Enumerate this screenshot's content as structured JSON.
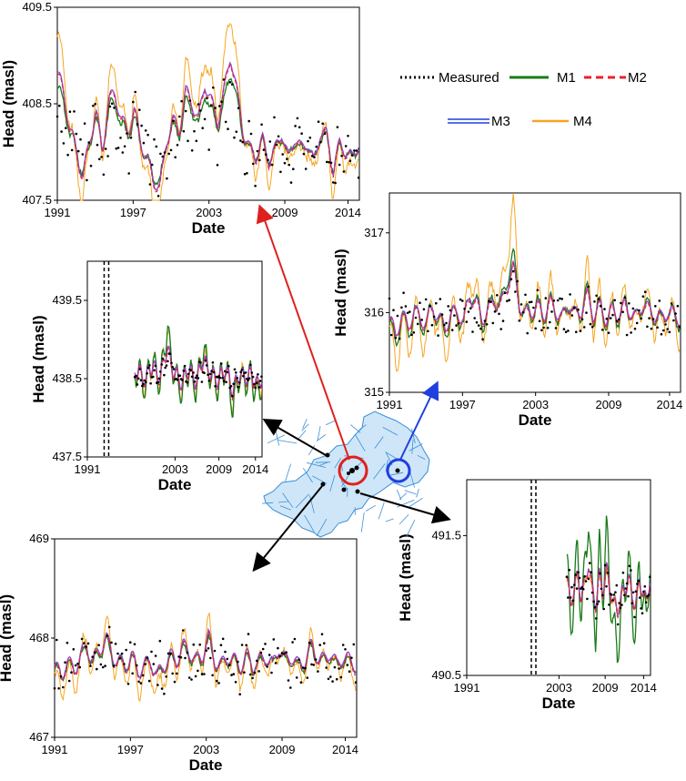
{
  "legend": {
    "entries": [
      {
        "key": "measured",
        "label": "Measured",
        "color": "#000000",
        "style": "dotted"
      },
      {
        "key": "m1",
        "label": "M1",
        "color": "#1a7a1a",
        "style": "solid"
      },
      {
        "key": "m2",
        "label": "M2",
        "color": "#e8202a",
        "style": "dashed"
      },
      {
        "key": "m3",
        "label": "M3",
        "color": "#1f3fe0",
        "style": "double"
      },
      {
        "key": "m4",
        "label": "M4",
        "color": "#f5a623",
        "style": "solid"
      }
    ]
  },
  "colors": {
    "measured": "#000000",
    "m1": "#1a7a1a",
    "m2": "#e8202a",
    "m3": "#1f3fe0",
    "m3_inner": "#e040d0",
    "m4": "#f5a623",
    "arrow_red": "#e0201c",
    "arrow_blue": "#1f3fe0",
    "arrow_black": "#000000",
    "river": "#3a8fd8",
    "basin_fill": "#cfe6f8"
  },
  "chart_data": [
    {
      "id": "top-left",
      "type": "line",
      "xlabel": "Date",
      "ylabel": "Head (masl)",
      "x_ticks": [
        "1991",
        "1997",
        "2003",
        "2009",
        "2014"
      ],
      "y_ticks": [
        "407.5",
        "408.5",
        "409.5"
      ],
      "xlim": [
        1991,
        2014.9
      ],
      "ylim": [
        407.5,
        409.5
      ],
      "series_start": 1991.0,
      "base_values": [
        408.8,
        408.6,
        408.2,
        408.0,
        407.7,
        408.1,
        408.4,
        408.0,
        408.5,
        408.6,
        408.3,
        408.2,
        408.4,
        408.1,
        407.9,
        407.7,
        407.6,
        408.1,
        408.3,
        408.2,
        408.6,
        408.5,
        408.3,
        408.7,
        408.5,
        408.3,
        408.6,
        409.0,
        408.6,
        408.2,
        408.0,
        407.95,
        408.1,
        407.9,
        408.0,
        408.2,
        407.9,
        408.15,
        408.0,
        408.1,
        407.85,
        408.2,
        408.15,
        407.8,
        408.05,
        408.0,
        407.9,
        408.1
      ],
      "measured_mean": 408.05,
      "measured_amp": 0.35,
      "spike_m1": [],
      "spike_m4": [],
      "m4_offset": -0.05,
      "m4_amp": 1.6,
      "m1_amp": 0.85,
      "seed": 11
    },
    {
      "id": "mid-left",
      "type": "line",
      "xlabel": "Date",
      "ylabel": "Head (masl)",
      "x_ticks": [
        "1991",
        "2003",
        "2009",
        "2014"
      ],
      "y_ticks": [
        "437.5",
        "438.5",
        "439.5"
      ],
      "xlim": [
        1991,
        2014.9
      ],
      "ylim": [
        437.5,
        440.0
      ],
      "series_start": 1997.5,
      "dashed_start_at": 1993.3,
      "base_values": [
        438.55,
        438.6,
        438.5,
        438.45,
        438.6,
        438.65,
        438.55,
        438.5,
        438.7,
        438.9,
        438.65,
        438.55,
        438.5,
        438.4,
        438.55,
        438.6,
        438.5,
        438.45,
        438.6,
        438.75,
        438.6,
        438.55,
        438.5,
        438.45,
        438.55,
        438.6,
        438.5,
        438.3,
        438.45,
        438.55,
        438.5,
        438.5,
        438.55,
        438.45,
        438.4,
        438.5
      ],
      "measured_mean": 438.55,
      "measured_amp": 0.12,
      "m1_amp": 1.8,
      "m4_amp": 1.6,
      "m4_offset": 0.0,
      "seed": 23
    },
    {
      "id": "right-top",
      "type": "line",
      "xlabel": "Date",
      "ylabel": "Head (masl)",
      "x_ticks": [
        "1991",
        "1997",
        "2003",
        "2009",
        "2014"
      ],
      "y_ticks": [
        "315",
        "316",
        "317"
      ],
      "xlim": [
        1991,
        2014.9
      ],
      "ylim": [
        315.0,
        317.5
      ],
      "series_start": 1991.0,
      "base_values": [
        315.9,
        315.7,
        315.95,
        315.8,
        316.0,
        315.9,
        315.85,
        316.05,
        315.9,
        315.8,
        315.95,
        316.0,
        315.85,
        316.2,
        316.1,
        315.9,
        316.0,
        316.15,
        316.05,
        316.3,
        316.55,
        316.1,
        315.95,
        316.0,
        316.05,
        315.95,
        316.1,
        316.0,
        315.9,
        316.1,
        315.95,
        316.0,
        316.2,
        315.95,
        316.05,
        315.9,
        316.0,
        315.95,
        316.05,
        316.0,
        315.9,
        316.1,
        316.0,
        315.95,
        315.9,
        316.0,
        315.95,
        315.9
      ],
      "measured_mean": 315.95,
      "measured_amp": 0.28,
      "m1_amp": 1.3,
      "m4_amp": 2.4,
      "m4_offset": -0.05,
      "seed": 37
    },
    {
      "id": "bottom-left",
      "type": "line",
      "xlabel": "Date",
      "ylabel": "Head (masl)",
      "x_ticks": [
        "1991",
        "1997",
        "2003",
        "2009",
        "2014"
      ],
      "y_ticks": [
        "467",
        "468",
        "469"
      ],
      "xlim": [
        1991,
        2014.9
      ],
      "ylim": [
        467.0,
        469.0
      ],
      "series_start": 1991.0,
      "base_values": [
        467.7,
        467.6,
        467.75,
        467.65,
        467.8,
        467.9,
        467.75,
        467.85,
        468.0,
        467.8,
        467.75,
        467.7,
        467.8,
        467.65,
        467.7,
        467.75,
        467.6,
        467.7,
        467.8,
        467.75,
        467.9,
        467.85,
        467.75,
        467.8,
        468.0,
        467.75,
        467.7,
        467.8,
        467.75,
        467.7,
        467.8,
        467.7,
        467.75,
        467.8,
        467.7,
        467.9,
        467.75,
        467.8,
        467.7,
        467.75,
        467.9,
        467.8,
        467.75,
        467.85,
        467.7,
        467.8,
        467.75,
        467.7
      ],
      "measured_mean": 467.75,
      "measured_amp": 0.25,
      "m1_amp": 0.9,
      "m4_amp": 1.8,
      "m4_offset": -0.05,
      "seed": 53
    },
    {
      "id": "bottom-right",
      "type": "line",
      "xlabel": "Date",
      "ylabel": "Head (masl)",
      "x_ticks": [
        "1991",
        "2003",
        "2009",
        "2014"
      ],
      "y_ticks": [
        "490.5",
        "491.5"
      ],
      "xlim": [
        1991,
        2014.9
      ],
      "ylim": [
        490.5,
        491.9
      ],
      "series_start": 2004.0,
      "dashed_start_at": 1999.4,
      "base_values": [
        491.2,
        491.0,
        491.1,
        491.2,
        491.05,
        491.15,
        491.3,
        491.1,
        491.0,
        491.2,
        491.1,
        491.25,
        491.1,
        491.0,
        490.95,
        491.05,
        491.1,
        491.2,
        491.05,
        491.0,
        491.15,
        491.1,
        491.0,
        491.2
      ],
      "measured_mean": 491.1,
      "measured_amp": 0.15,
      "m1_amp": 2.8,
      "m4_amp": 0.8,
      "m4_offset": 0.0,
      "seed": 71
    }
  ]
}
